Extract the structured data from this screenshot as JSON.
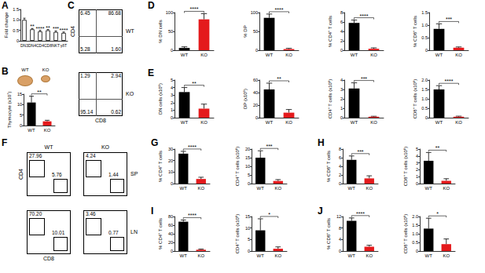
{
  "chart_data": [
    {
      "panel": "A",
      "type": "bar",
      "ylabel": "Fold change",
      "categories": [
        "DN3",
        "DN4",
        "CD4",
        "CD8",
        "NKT",
        "γδT"
      ],
      "values": [
        1.0,
        0.55,
        0.45,
        0.5,
        0.42,
        0.38
      ],
      "errors": [
        0.08,
        0.04,
        0.05,
        0.04,
        0.05,
        0.04
      ],
      "color": "#ffffff",
      "ylim": [
        0,
        1.5
      ],
      "yticks": [
        0,
        0.5,
        {
          "value": 1,
          "label": "1.0"
        },
        1.5
      ],
      "annotations": [
        {
          "category": "DN4",
          "text": "**"
        },
        {
          "category": "CD4",
          "text": "****"
        },
        {
          "category": "CD8",
          "text": "**"
        },
        {
          "category": "NKT",
          "text": "***"
        },
        {
          "category": "γδT",
          "text": "****"
        }
      ]
    },
    {
      "panel": "B",
      "type": "bar",
      "photo_labels": [
        "WT",
        "KO"
      ],
      "ylabel": "Thymocyte (x10⁷)",
      "categories": [
        "WT",
        "KO"
      ],
      "values": [
        11,
        2
      ],
      "errors": [
        3,
        0.5
      ],
      "colors": [
        "#000000",
        "#e41a1c"
      ],
      "ylim": [
        0,
        15
      ],
      "yticks": [
        0,
        5,
        10,
        15
      ],
      "annotation": "**"
    },
    {
      "panel": "C",
      "type": "flow_cytometry",
      "label": "WT",
      "ylabel": "CD4",
      "quadrants": {
        "top_left": 6.45,
        "top_right": 86.68,
        "bottom_left": 5.28,
        "bottom_right": {
          "value": 1.6,
          "label": "1.60"
        }
      }
    },
    {
      "type": "flow_cytometry",
      "label": "KO",
      "xlabel": "CD8",
      "quadrants": {
        "top_left": 1.29,
        "top_right": 2.94,
        "bottom_left": 95.14,
        "bottom_right": 0.62
      }
    },
    {
      "panel": "D",
      "type": "bar",
      "ylabel": "% DN cells",
      "categories": [
        "WT",
        "KO"
      ],
      "values": [
        6,
        82
      ],
      "errors": [
        3,
        15
      ],
      "colors": [
        "#000000",
        "#e41a1c"
      ],
      "ylim": [
        0,
        100
      ],
      "yticks": [
        0,
        50,
        100
      ],
      "annotation": "****"
    },
    {
      "type": "bar",
      "ylabel": "% DP",
      "categories": [
        "WT",
        "KO"
      ],
      "values": [
        86,
        3
      ],
      "errors": [
        10,
        2
      ],
      "colors": [
        "#000000",
        "#e41a1c"
      ],
      "ylim": [
        0,
        100
      ],
      "yticks": [
        0,
        50,
        100
      ],
      "annotation": "****"
    },
    {
      "type": "bar",
      "ylabel": "% CD4⁺ T cells",
      "categories": [
        "WT",
        "KO"
      ],
      "values": [
        5.8,
        0.3
      ],
      "errors": [
        0.6,
        0.2
      ],
      "colors": [
        "#000000",
        "#e41a1c"
      ],
      "ylim": [
        0,
        8
      ],
      "yticks": [
        0,
        2,
        4,
        6,
        8
      ],
      "annotation": "****"
    },
    {
      "type": "bar",
      "ylabel": "% CD8⁺ T cells",
      "categories": [
        "WT",
        "KO"
      ],
      "values": [
        0.85,
        0.1
      ],
      "errors": [
        0.2,
        0.03
      ],
      "colors": [
        "#000000",
        "#e41a1c"
      ],
      "ylim": [
        0,
        1.5
      ],
      "yticks": [
        0,
        0.5,
        {
          "value": 1,
          "label": "1.0"
        },
        1.5
      ],
      "annotation": "***"
    },
    {
      "panel": "E",
      "type": "bar",
      "ylabel": "DN cells (x10⁶)",
      "categories": [
        "WT",
        "KO"
      ],
      "values": [
        3.4,
        1.2
      ],
      "errors": [
        0.6,
        0.6
      ],
      "colors": [
        "#000000",
        "#e41a1c"
      ],
      "ylim": [
        0,
        5
      ],
      "yticks": [
        0,
        1,
        2,
        3,
        4,
        5
      ],
      "annotation": "**"
    },
    {
      "type": "bar",
      "ylabel": "DP (x10⁶)",
      "categories": [
        "WT",
        "KO"
      ],
      "values": [
        45,
        8
      ],
      "errors": [
        10,
        5
      ],
      "colors": [
        "#000000",
        "#e41a1c"
      ],
      "ylim": [
        0,
        60
      ],
      "yticks": [
        0,
        20,
        40,
        60
      ],
      "annotation": "**"
    },
    {
      "type": "bar",
      "ylabel": "CD4⁺ T cells (x10⁶)",
      "categories": [
        "WT",
        "KO"
      ],
      "values": [
        3.1,
        0.1
      ],
      "errors": [
        0.6,
        0.05
      ],
      "colors": [
        "#000000",
        "#e41a1c"
      ],
      "ylim": [
        0,
        4
      ],
      "yticks": [
        0,
        1,
        2,
        3,
        4
      ],
      "annotation": "***"
    },
    {
      "type": "bar",
      "ylabel": "CD8⁺ T cells (x10⁶)",
      "categories": [
        "WT",
        "KO"
      ],
      "values": [
        1.5,
        0.05
      ],
      "errors": [
        0.2,
        0.03
      ],
      "colors": [
        "#000000",
        "#e41a1c"
      ],
      "ylim": [
        0,
        2
      ],
      "yticks": [
        0,
        0.5,
        {
          "value": 1,
          "label": "1.0"
        },
        1.5,
        {
          "value": 2,
          "label": "2.0"
        }
      ],
      "annotation": "****"
    },
    {
      "panel": "F",
      "type": "flow_cytometry",
      "label": "WT",
      "ylabel": "CD4",
      "gates": {
        "cd4": 27.96,
        "cd8": 5.76
      }
    },
    {
      "type": "flow_cytometry",
      "label": "KO",
      "tissue": "SP",
      "gates": {
        "cd4": 4.24,
        "cd8": 1.44
      }
    },
    {
      "type": "flow_cytometry",
      "xlabel": "CD8",
      "gates": {
        "cd4": {
          "value": 70.2,
          "label": "70.20"
        },
        "cd8": 10.01
      }
    },
    {
      "type": "flow_cytometry",
      "tissue": "LN",
      "gates": {
        "cd4": 3.46,
        "cd8": 0.77
      }
    },
    {
      "panel": "G",
      "type": "bar",
      "ylabel": "% CD4⁺ T cells",
      "categories": [
        "WT",
        "KO"
      ],
      "values": [
        26,
        4
      ],
      "errors": [
        2,
        1.5
      ],
      "colors": [
        "#000000",
        "#e41a1c"
      ],
      "ylim": [
        0,
        30
      ],
      "yticks": [
        0,
        10,
        20,
        30
      ],
      "annotation": "****"
    },
    {
      "type": "bar",
      "ylabel": "CD4⁺ T cells (x10⁶)",
      "categories": [
        "WT",
        "KO"
      ],
      "values": [
        15,
        1.5
      ],
      "errors": [
        4,
        0.8
      ],
      "colors": [
        "#000000",
        "#e41a1c"
      ],
      "ylim": [
        0,
        20
      ],
      "yticks": [
        0,
        5,
        10,
        15,
        20
      ],
      "annotation": "***"
    },
    {
      "panel": "H",
      "type": "bar",
      "ylabel": "% CD8⁺ T cells",
      "categories": [
        "WT",
        "KO"
      ],
      "values": [
        5.5,
        1.2
      ],
      "errors": [
        0.9,
        0.6
      ],
      "colors": [
        "#000000",
        "#e41a1c"
      ],
      "ylim": [
        0,
        8
      ],
      "yticks": [
        0,
        2,
        4,
        6,
        8
      ],
      "annotation": "***"
    },
    {
      "type": "bar",
      "ylabel": "CD8⁺ T cells (x10⁶)",
      "categories": [
        "WT",
        "KO"
      ],
      "values": [
        3.3,
        0.4
      ],
      "errors": [
        1.2,
        0.3
      ],
      "colors": [
        "#000000",
        "#e41a1c"
      ],
      "ylim": [
        0,
        5
      ],
      "yticks": [
        0,
        1,
        2,
        3,
        4,
        5
      ],
      "annotation": "**"
    },
    {
      "panel": "I",
      "type": "bar",
      "ylabel": "% CD4⁺ T cells",
      "categories": [
        "WT",
        "KO"
      ],
      "values": [
        68,
        3
      ],
      "errors": [
        4,
        1.5
      ],
      "colors": [
        "#000000",
        "#e41a1c"
      ],
      "ylim": [
        0,
        80
      ],
      "yticks": [
        0,
        20,
        40,
        60,
        80
      ],
      "annotation": "****"
    },
    {
      "type": "bar",
      "ylabel": "CD4⁺ T cells (x10⁶)",
      "categories": [
        "WT",
        "KO"
      ],
      "values": [
        9,
        1
      ],
      "errors": [
        5,
        0.8
      ],
      "colors": [
        "#000000",
        "#e41a1c"
      ],
      "ylim": [
        0,
        15
      ],
      "yticks": [
        0,
        5,
        10,
        15
      ],
      "annotation": "*"
    },
    {
      "panel": "J",
      "type": "bar",
      "ylabel": "% CD8⁺ T cells",
      "categories": [
        "WT",
        "KO"
      ],
      "values": [
        10.5,
        1.5
      ],
      "errors": [
        1,
        0.5
      ],
      "colors": [
        "#000000",
        "#e41a1c"
      ],
      "ylim": [
        0,
        12
      ],
      "yticks": [
        0,
        4,
        8,
        12
      ],
      "annotation": "****"
    },
    {
      "type": "bar",
      "ylabel": "CD8⁺ T cells (x10⁶)",
      "categories": [
        "WT",
        "KO"
      ],
      "values": [
        1.3,
        0.4
      ],
      "errors": [
        0.6,
        0.3
      ],
      "colors": [
        "#000000",
        "#e41a1c"
      ],
      "ylim": [
        0,
        2
      ],
      "yticks": [
        0,
        0.5,
        {
          "value": 1,
          "label": "1.0"
        },
        1.5,
        {
          "value": 2,
          "label": "2.0"
        }
      ],
      "annotation": "*"
    }
  ]
}
